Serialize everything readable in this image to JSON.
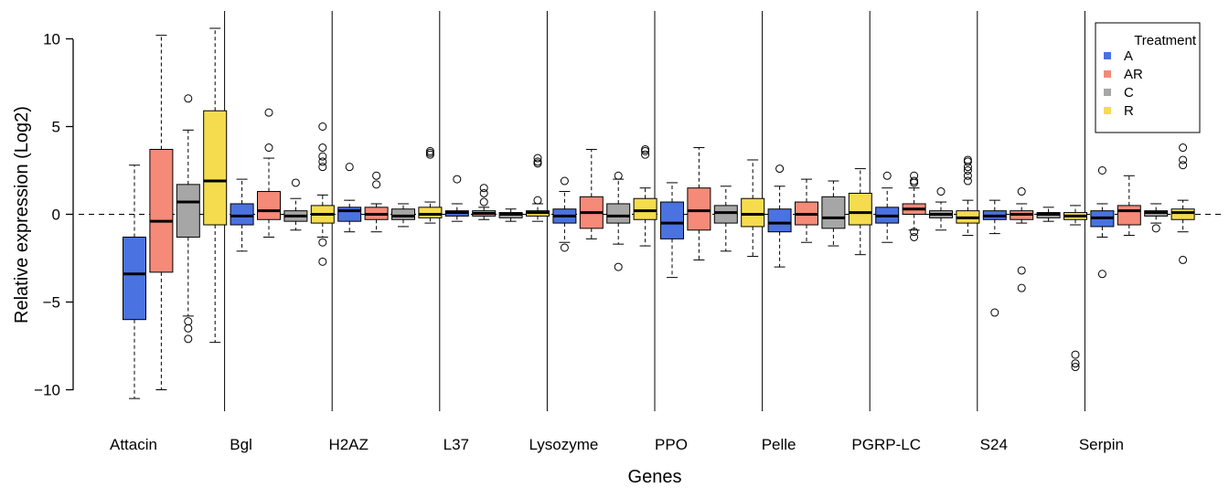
{
  "chart_data": {
    "type": "box",
    "xlabel": "Genes",
    "ylabel": "Relative expression (Log2)",
    "ylim": [
      -10.5,
      11
    ],
    "yticks": [
      -10,
      -5,
      0,
      5,
      10
    ],
    "ytick_labels": [
      "−10",
      "−5",
      "0",
      "5",
      "10"
    ],
    "reference_line": 0,
    "categories": [
      "Attacin",
      "Bgl",
      "H2AZ",
      "L37",
      "Lysozyme",
      "PPO",
      "Pelle",
      "PGRP-LC",
      "S24",
      "Serpin"
    ],
    "legend": {
      "title": "Treatment",
      "position": "top-right"
    },
    "series": [
      {
        "name": "A",
        "color": "#4a72e0",
        "boxes": [
          {
            "whislo": -10.5,
            "q1": -6.0,
            "med": -3.4,
            "q3": -1.3,
            "whishi": 2.8,
            "fliers": []
          },
          {
            "whislo": -2.1,
            "q1": -0.6,
            "med": -0.1,
            "q3": 0.6,
            "whishi": 2.0,
            "fliers": []
          },
          {
            "whislo": -1.0,
            "q1": -0.4,
            "med": 0.2,
            "q3": 0.4,
            "whishi": 0.8,
            "fliers": [
              2.7
            ]
          },
          {
            "whislo": -0.4,
            "q1": -0.1,
            "med": 0.1,
            "q3": 0.2,
            "whishi": 0.6,
            "fliers": [
              2.0
            ]
          },
          {
            "whislo": -1.6,
            "q1": -0.5,
            "med": -0.1,
            "q3": 0.3,
            "whishi": 1.3,
            "fliers": [
              1.9,
              -1.9
            ]
          },
          {
            "whislo": -3.6,
            "q1": -1.4,
            "med": -0.5,
            "q3": 0.7,
            "whishi": 1.8,
            "fliers": []
          },
          {
            "whislo": -3.0,
            "q1": -1.0,
            "med": -0.5,
            "q3": 0.3,
            "whishi": 1.6,
            "fliers": [
              2.6
            ]
          },
          {
            "whislo": -1.6,
            "q1": -0.5,
            "med": -0.1,
            "q3": 0.4,
            "whishi": 1.5,
            "fliers": [
              2.2
            ]
          },
          {
            "whislo": -1.1,
            "q1": -0.3,
            "med": -0.1,
            "q3": 0.2,
            "whishi": 0.8,
            "fliers": [
              -5.6
            ]
          },
          {
            "whislo": -1.3,
            "q1": -0.7,
            "med": -0.2,
            "q3": 0.2,
            "whishi": 0.6,
            "fliers": [
              2.5,
              -3.4
            ]
          }
        ]
      },
      {
        "name": "AR",
        "color": "#f58a78",
        "boxes": [
          {
            "whislo": -10.0,
            "q1": -3.3,
            "med": -0.4,
            "q3": 3.7,
            "whishi": 10.2,
            "fliers": []
          },
          {
            "whislo": -1.3,
            "q1": -0.3,
            "med": 0.2,
            "q3": 1.3,
            "whishi": 3.2,
            "fliers": [
              5.8,
              3.8
            ]
          },
          {
            "whislo": -1.0,
            "q1": -0.3,
            "med": 0.0,
            "q3": 0.4,
            "whishi": 0.6,
            "fliers": [
              2.2,
              1.7
            ]
          },
          {
            "whislo": -0.3,
            "q1": -0.1,
            "med": 0.05,
            "q3": 0.2,
            "whishi": 0.4,
            "fliers": [
              1.5,
              1.2,
              0.7
            ]
          },
          {
            "whislo": -1.4,
            "q1": -0.8,
            "med": 0.1,
            "q3": 1.0,
            "whishi": 3.7,
            "fliers": []
          },
          {
            "whislo": -2.6,
            "q1": -0.9,
            "med": 0.2,
            "q3": 1.5,
            "whishi": 3.8,
            "fliers": []
          },
          {
            "whislo": -1.6,
            "q1": -0.6,
            "med": 0.0,
            "q3": 0.7,
            "whishi": 2.0,
            "fliers": []
          },
          {
            "whislo": -0.9,
            "q1": 0.0,
            "med": 0.3,
            "q3": 0.6,
            "whishi": 1.5,
            "fliers": [
              2.2,
              1.9,
              1.8,
              -1.0,
              -1.3
            ]
          },
          {
            "whislo": -0.5,
            "q1": -0.3,
            "med": 0.0,
            "q3": 0.2,
            "whishi": 0.6,
            "fliers": [
              1.3,
              -3.2,
              -4.2
            ]
          },
          {
            "whislo": -1.2,
            "q1": -0.6,
            "med": 0.2,
            "q3": 0.5,
            "whishi": 2.2,
            "fliers": []
          }
        ]
      },
      {
        "name": "C",
        "color": "#a6a6a6",
        "boxes": [
          {
            "whislo": -5.8,
            "q1": -1.3,
            "med": 0.7,
            "q3": 1.7,
            "whishi": 4.8,
            "fliers": [
              6.6,
              -6.1,
              -6.5,
              -7.1
            ]
          },
          {
            "whislo": -0.9,
            "q1": -0.4,
            "med": -0.1,
            "q3": 0.2,
            "whishi": 0.9,
            "fliers": [
              1.8
            ]
          },
          {
            "whislo": -0.7,
            "q1": -0.3,
            "med": -0.1,
            "q3": 0.3,
            "whishi": 0.6,
            "fliers": []
          },
          {
            "whislo": -0.4,
            "q1": -0.2,
            "med": 0.0,
            "q3": 0.1,
            "whishi": 0.3,
            "fliers": []
          },
          {
            "whislo": -1.7,
            "q1": -0.5,
            "med": -0.1,
            "q3": 0.6,
            "whishi": 2.0,
            "fliers": [
              2.2,
              -3.0
            ]
          },
          {
            "whislo": -2.1,
            "q1": -0.5,
            "med": 0.1,
            "q3": 0.5,
            "whishi": 1.6,
            "fliers": []
          },
          {
            "whislo": -1.8,
            "q1": -0.8,
            "med": -0.2,
            "q3": 1.0,
            "whishi": 1.9,
            "fliers": []
          },
          {
            "whislo": -0.9,
            "q1": -0.2,
            "med": 0.0,
            "q3": 0.2,
            "whishi": 0.7,
            "fliers": [
              1.3
            ]
          },
          {
            "whislo": -0.4,
            "q1": -0.2,
            "med": 0.0,
            "q3": 0.1,
            "whishi": 0.4,
            "fliers": []
          },
          {
            "whislo": -0.5,
            "q1": -0.1,
            "med": 0.1,
            "q3": 0.2,
            "whishi": 0.6,
            "fliers": [
              -0.8
            ]
          }
        ]
      },
      {
        "name": "R",
        "color": "#f5dc4e",
        "boxes": [
          {
            "whislo": -7.3,
            "q1": -0.6,
            "med": 1.9,
            "q3": 5.9,
            "whishi": 10.6,
            "fliers": []
          },
          {
            "whislo": -1.3,
            "q1": -0.5,
            "med": 0.0,
            "q3": 0.5,
            "whishi": 1.1,
            "fliers": [
              5.0,
              3.8,
              3.3,
              3.0,
              2.7,
              -1.6,
              -2.7
            ]
          },
          {
            "whislo": -0.5,
            "q1": -0.2,
            "med": 0.0,
            "q3": 0.4,
            "whishi": 0.7,
            "fliers": [
              3.6,
              3.5,
              3.4
            ]
          },
          {
            "whislo": -0.4,
            "q1": -0.1,
            "med": 0.1,
            "q3": 0.2,
            "whishi": 0.6,
            "fliers": [
              3.2,
              3.0,
              2.9,
              0.8
            ]
          },
          {
            "whislo": -1.8,
            "q1": -0.3,
            "med": 0.2,
            "q3": 0.9,
            "whishi": 1.5,
            "fliers": [
              3.7,
              3.6,
              3.4
            ]
          },
          {
            "whislo": -2.4,
            "q1": -0.7,
            "med": 0.0,
            "q3": 0.9,
            "whishi": 3.1,
            "fliers": []
          },
          {
            "whislo": -2.3,
            "q1": -0.6,
            "med": 0.1,
            "q3": 1.2,
            "whishi": 2.6,
            "fliers": []
          },
          {
            "whislo": -1.2,
            "q1": -0.5,
            "med": -0.2,
            "q3": 0.2,
            "whishi": 0.8,
            "fliers": [
              3.1,
              3.0,
              2.7,
              2.5,
              2.2,
              1.9
            ]
          },
          {
            "whislo": -0.6,
            "q1": -0.3,
            "med": -0.1,
            "q3": 0.1,
            "whishi": 0.5,
            "fliers": [
              -8.0,
              -8.5,
              -8.7
            ]
          },
          {
            "whislo": -1.0,
            "q1": -0.3,
            "med": 0.1,
            "q3": 0.3,
            "whishi": 0.8,
            "fliers": [
              3.8,
              3.1,
              2.8,
              -2.6
            ]
          }
        ]
      }
    ]
  }
}
